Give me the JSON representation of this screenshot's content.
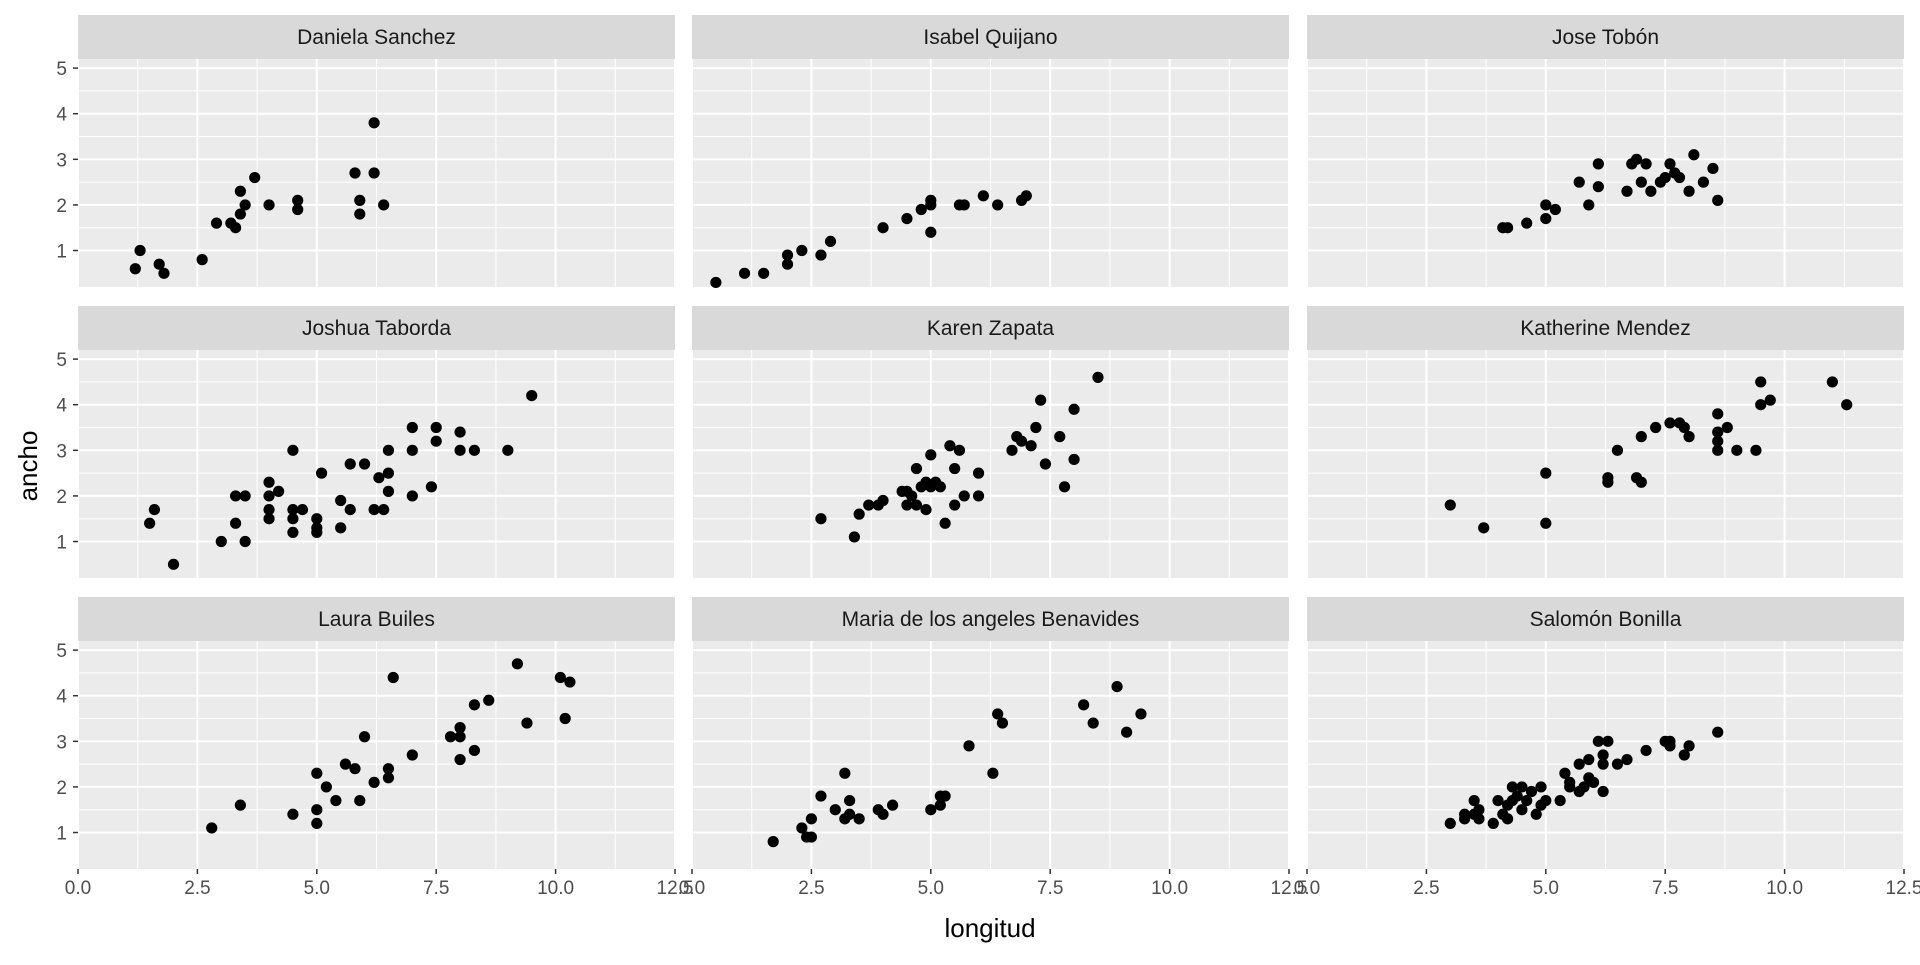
{
  "chart_data": {
    "type": "scatter",
    "facet_layout": "3x3",
    "xlabel": "longitud",
    "ylabel": "ancho",
    "xlim": [
      0,
      12.5
    ],
    "ylim": [
      0.2,
      5.2
    ],
    "x_ticks": [
      0,
      2.5,
      5,
      7.5,
      10,
      12.5
    ],
    "x_tick_labels": [
      "0.0",
      "2.5",
      "5.0",
      "7.5",
      "10.0",
      "12.5"
    ],
    "y_ticks": [
      1,
      2,
      3,
      4,
      5
    ],
    "y_tick_labels": [
      "1",
      "2",
      "3",
      "4",
      "5"
    ],
    "grid": true,
    "legend": "none",
    "colors": {
      "panel_bg": "#EBEBEB",
      "strip_bg": "#D9D9D9",
      "grid": "#FFFFFF",
      "point": "#000000"
    },
    "facets": [
      {
        "name": "Daniela Sanchez",
        "points": [
          [
            1.2,
            0.6
          ],
          [
            1.3,
            1.0
          ],
          [
            1.7,
            0.7
          ],
          [
            1.8,
            0.5
          ],
          [
            2.6,
            0.8
          ],
          [
            2.9,
            1.6
          ],
          [
            3.2,
            1.6
          ],
          [
            3.3,
            1.5
          ],
          [
            3.4,
            1.8
          ],
          [
            3.4,
            2.3
          ],
          [
            3.5,
            2.0
          ],
          [
            3.7,
            2.6
          ],
          [
            4.0,
            2.0
          ],
          [
            4.6,
            2.1
          ],
          [
            4.6,
            1.9
          ],
          [
            5.8,
            2.7
          ],
          [
            5.9,
            2.1
          ],
          [
            5.9,
            1.8
          ],
          [
            6.2,
            2.7
          ],
          [
            6.2,
            3.8
          ],
          [
            6.4,
            2.0
          ]
        ]
      },
      {
        "name": "Isabel Quijano",
        "points": [
          [
            0.5,
            0.3
          ],
          [
            1.1,
            0.5
          ],
          [
            1.5,
            0.5
          ],
          [
            2.0,
            0.7
          ],
          [
            2.0,
            0.9
          ],
          [
            2.3,
            1.0
          ],
          [
            2.7,
            0.9
          ],
          [
            2.9,
            1.2
          ],
          [
            4.0,
            1.5
          ],
          [
            4.5,
            1.7
          ],
          [
            4.8,
            1.9
          ],
          [
            5.0,
            2.0
          ],
          [
            5.0,
            2.1
          ],
          [
            5.0,
            1.4
          ],
          [
            5.6,
            2.0
          ],
          [
            5.7,
            2.0
          ],
          [
            6.1,
            2.2
          ],
          [
            6.4,
            2.0
          ],
          [
            6.9,
            2.1
          ],
          [
            7.0,
            2.2
          ]
        ]
      },
      {
        "name": "Jose Tobón",
        "points": [
          [
            4.1,
            1.5
          ],
          [
            4.2,
            1.5
          ],
          [
            4.6,
            1.6
          ],
          [
            5.0,
            1.7
          ],
          [
            5.0,
            2.0
          ],
          [
            5.2,
            1.9
          ],
          [
            5.7,
            2.5
          ],
          [
            5.9,
            2.0
          ],
          [
            6.1,
            2.4
          ],
          [
            6.1,
            2.9
          ],
          [
            6.7,
            2.3
          ],
          [
            6.8,
            2.9
          ],
          [
            6.9,
            3.0
          ],
          [
            7.0,
            2.5
          ],
          [
            7.1,
            2.9
          ],
          [
            7.2,
            2.3
          ],
          [
            7.4,
            2.5
          ],
          [
            7.5,
            2.6
          ],
          [
            7.6,
            2.9
          ],
          [
            7.7,
            2.7
          ],
          [
            7.8,
            2.6
          ],
          [
            8.0,
            2.3
          ],
          [
            8.1,
            3.1
          ],
          [
            8.3,
            2.5
          ],
          [
            8.5,
            2.8
          ],
          [
            8.6,
            2.1
          ]
        ]
      },
      {
        "name": "Joshua Taborda",
        "points": [
          [
            1.5,
            1.4
          ],
          [
            1.6,
            1.7
          ],
          [
            2.0,
            0.5
          ],
          [
            3.0,
            1.0
          ],
          [
            3.3,
            1.4
          ],
          [
            3.3,
            2.0
          ],
          [
            3.5,
            1.0
          ],
          [
            3.5,
            2.0
          ],
          [
            4.0,
            1.5
          ],
          [
            4.0,
            1.7
          ],
          [
            4.0,
            2.0
          ],
          [
            4.0,
            2.3
          ],
          [
            4.2,
            2.1
          ],
          [
            4.5,
            1.2
          ],
          [
            4.5,
            1.5
          ],
          [
            4.5,
            1.7
          ],
          [
            4.5,
            3.0
          ],
          [
            4.7,
            1.7
          ],
          [
            5.0,
            1.2
          ],
          [
            5.0,
            1.3
          ],
          [
            5.0,
            1.5
          ],
          [
            5.1,
            2.5
          ],
          [
            5.5,
            1.3
          ],
          [
            5.5,
            1.9
          ],
          [
            5.7,
            2.7
          ],
          [
            5.7,
            1.7
          ],
          [
            6.0,
            2.7
          ],
          [
            6.2,
            1.7
          ],
          [
            6.3,
            2.4
          ],
          [
            6.4,
            1.7
          ],
          [
            6.5,
            2.5
          ],
          [
            6.5,
            2.1
          ],
          [
            6.5,
            3.0
          ],
          [
            7.0,
            3.5
          ],
          [
            7.0,
            3.0
          ],
          [
            7.0,
            2.0
          ],
          [
            7.4,
            2.2
          ],
          [
            7.5,
            3.5
          ],
          [
            7.5,
            3.2
          ],
          [
            8.0,
            3.4
          ],
          [
            8.0,
            3.0
          ],
          [
            8.3,
            3.0
          ],
          [
            9.0,
            3.0
          ],
          [
            9.5,
            4.2
          ]
        ]
      },
      {
        "name": "Karen Zapata",
        "points": [
          [
            2.7,
            1.5
          ],
          [
            3.4,
            1.1
          ],
          [
            3.5,
            1.6
          ],
          [
            3.7,
            1.8
          ],
          [
            3.9,
            1.8
          ],
          [
            4.0,
            1.9
          ],
          [
            4.4,
            2.1
          ],
          [
            4.5,
            2.1
          ],
          [
            4.5,
            1.8
          ],
          [
            4.6,
            2.0
          ],
          [
            4.7,
            1.8
          ],
          [
            4.7,
            2.6
          ],
          [
            4.8,
            2.2
          ],
          [
            4.9,
            1.7
          ],
          [
            4.9,
            2.3
          ],
          [
            5.0,
            2.2
          ],
          [
            5.0,
            2.9
          ],
          [
            5.1,
            2.3
          ],
          [
            5.2,
            2.2
          ],
          [
            5.3,
            1.4
          ],
          [
            5.4,
            3.1
          ],
          [
            5.5,
            1.8
          ],
          [
            5.5,
            2.6
          ],
          [
            5.6,
            3.0
          ],
          [
            5.7,
            2.0
          ],
          [
            6.0,
            2.5
          ],
          [
            6.0,
            2.0
          ],
          [
            6.7,
            3.0
          ],
          [
            6.8,
            3.3
          ],
          [
            6.9,
            3.2
          ],
          [
            7.1,
            3.1
          ],
          [
            7.2,
            3.5
          ],
          [
            7.3,
            4.1
          ],
          [
            7.4,
            2.7
          ],
          [
            7.7,
            3.3
          ],
          [
            7.8,
            2.2
          ],
          [
            8.0,
            3.9
          ],
          [
            8.0,
            2.8
          ],
          [
            8.5,
            4.6
          ]
        ]
      },
      {
        "name": "Katherine Mendez",
        "points": [
          [
            3.0,
            1.8
          ],
          [
            3.7,
            1.3
          ],
          [
            5.0,
            1.4
          ],
          [
            5.0,
            2.5
          ],
          [
            6.3,
            2.3
          ],
          [
            6.3,
            2.4
          ],
          [
            6.5,
            3.0
          ],
          [
            6.9,
            2.4
          ],
          [
            7.0,
            2.3
          ],
          [
            7.0,
            3.3
          ],
          [
            7.3,
            3.5
          ],
          [
            7.6,
            3.6
          ],
          [
            7.8,
            3.6
          ],
          [
            7.9,
            3.5
          ],
          [
            8.0,
            3.3
          ],
          [
            8.6,
            3.8
          ],
          [
            8.6,
            3.4
          ],
          [
            8.6,
            3.2
          ],
          [
            8.6,
            3.0
          ],
          [
            8.8,
            3.5
          ],
          [
            9.0,
            3.0
          ],
          [
            9.4,
            3.0
          ],
          [
            9.5,
            4.5
          ],
          [
            9.5,
            4.0
          ],
          [
            9.7,
            4.1
          ],
          [
            11.0,
            4.5
          ],
          [
            11.3,
            4.0
          ]
        ]
      },
      {
        "name": "Laura Builes",
        "points": [
          [
            2.8,
            1.1
          ],
          [
            3.4,
            1.6
          ],
          [
            4.5,
            1.4
          ],
          [
            5.0,
            1.2
          ],
          [
            5.0,
            1.5
          ],
          [
            5.0,
            2.3
          ],
          [
            5.2,
            2.0
          ],
          [
            5.4,
            1.7
          ],
          [
            5.6,
            2.5
          ],
          [
            5.8,
            2.4
          ],
          [
            5.9,
            1.7
          ],
          [
            6.0,
            3.1
          ],
          [
            6.2,
            2.1
          ],
          [
            6.5,
            2.4
          ],
          [
            6.5,
            2.2
          ],
          [
            6.6,
            4.4
          ],
          [
            7.0,
            2.7
          ],
          [
            7.8,
            3.1
          ],
          [
            8.0,
            3.3
          ],
          [
            8.0,
            3.1
          ],
          [
            8.0,
            2.6
          ],
          [
            8.3,
            2.8
          ],
          [
            8.3,
            3.8
          ],
          [
            8.6,
            3.9
          ],
          [
            9.2,
            4.7
          ],
          [
            9.4,
            3.4
          ],
          [
            10.1,
            4.4
          ],
          [
            10.2,
            3.5
          ],
          [
            10.3,
            4.3
          ]
        ]
      },
      {
        "name": "Maria de los angeles Benavides",
        "points": [
          [
            1.7,
            0.8
          ],
          [
            2.3,
            1.1
          ],
          [
            2.4,
            0.9
          ],
          [
            2.5,
            0.9
          ],
          [
            2.5,
            1.3
          ],
          [
            2.7,
            1.8
          ],
          [
            3.0,
            1.5
          ],
          [
            3.2,
            2.3
          ],
          [
            3.2,
            1.3
          ],
          [
            3.3,
            1.4
          ],
          [
            3.3,
            1.7
          ],
          [
            3.5,
            1.3
          ],
          [
            3.9,
            1.5
          ],
          [
            4.0,
            1.4
          ],
          [
            4.2,
            1.6
          ],
          [
            5.0,
            1.5
          ],
          [
            5.2,
            1.6
          ],
          [
            5.2,
            1.8
          ],
          [
            5.3,
            1.8
          ],
          [
            5.8,
            2.9
          ],
          [
            6.3,
            2.3
          ],
          [
            6.4,
            3.6
          ],
          [
            6.5,
            3.4
          ],
          [
            8.2,
            3.8
          ],
          [
            8.4,
            3.4
          ],
          [
            8.9,
            4.2
          ],
          [
            9.1,
            3.2
          ],
          [
            9.4,
            3.6
          ]
        ]
      },
      {
        "name": "Salomón  Bonilla",
        "points": [
          [
            3.0,
            1.2
          ],
          [
            3.3,
            1.4
          ],
          [
            3.3,
            1.3
          ],
          [
            3.5,
            1.4
          ],
          [
            3.5,
            1.7
          ],
          [
            3.6,
            1.5
          ],
          [
            3.6,
            1.3
          ],
          [
            3.9,
            1.2
          ],
          [
            4.0,
            1.7
          ],
          [
            4.1,
            1.4
          ],
          [
            4.2,
            1.6
          ],
          [
            4.2,
            1.3
          ],
          [
            4.3,
            1.7
          ],
          [
            4.3,
            2.0
          ],
          [
            4.4,
            1.8
          ],
          [
            4.5,
            2.0
          ],
          [
            4.5,
            1.5
          ],
          [
            4.6,
            1.7
          ],
          [
            4.7,
            1.9
          ],
          [
            4.8,
            1.4
          ],
          [
            4.9,
            1.6
          ],
          [
            4.9,
            2.0
          ],
          [
            5.0,
            1.7
          ],
          [
            5.3,
            1.7
          ],
          [
            5.4,
            2.3
          ],
          [
            5.5,
            2.1
          ],
          [
            5.5,
            2.0
          ],
          [
            5.7,
            2.5
          ],
          [
            5.7,
            1.9
          ],
          [
            5.8,
            2.0
          ],
          [
            5.9,
            2.2
          ],
          [
            5.9,
            2.6
          ],
          [
            6.0,
            2.1
          ],
          [
            6.1,
            3.0
          ],
          [
            6.2,
            2.5
          ],
          [
            6.2,
            2.7
          ],
          [
            6.2,
            1.9
          ],
          [
            6.3,
            3.0
          ],
          [
            6.5,
            2.5
          ],
          [
            6.7,
            2.6
          ],
          [
            7.1,
            2.8
          ],
          [
            7.5,
            3.0
          ],
          [
            7.6,
            2.9
          ],
          [
            7.6,
            3.0
          ],
          [
            7.9,
            2.7
          ],
          [
            8.0,
            2.9
          ],
          [
            8.6,
            3.2
          ]
        ]
      }
    ]
  }
}
